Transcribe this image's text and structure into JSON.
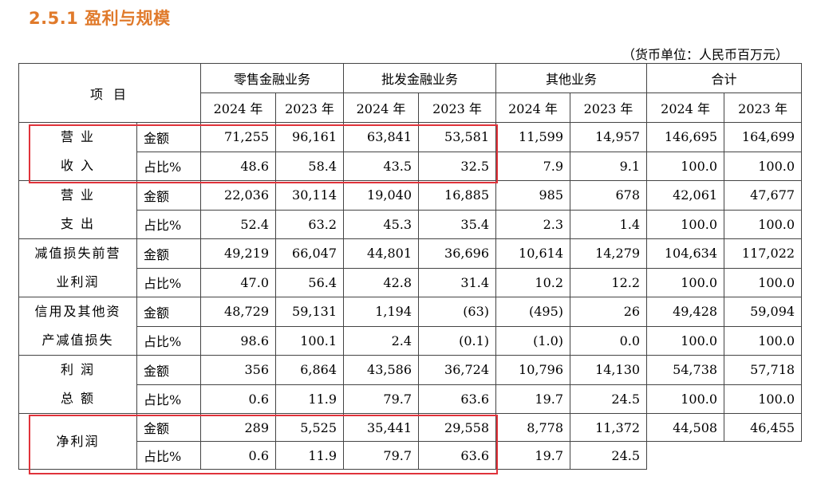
{
  "section": {
    "title": "2.5.1  盈利与规模"
  },
  "unit": "（货币单位：人民币百万元）",
  "header": {
    "item": "项  目",
    "groups": [
      "零售金融业务",
      "批发金融业务",
      "其他业务",
      "合计"
    ],
    "years": [
      "2024 年",
      "2023 年",
      "2024 年",
      "2023 年",
      "2024 年",
      "2023 年",
      "2024 年",
      "2023 年"
    ]
  },
  "rows": [
    {
      "label": [
        "营  业",
        "收  入"
      ],
      "amount": {
        "name": "金额",
        "values": [
          "71,255",
          "96,161",
          "63,841",
          "53,581",
          "11,599",
          "14,957",
          "146,695",
          "164,699"
        ]
      },
      "ratio": {
        "name": "占比%",
        "values": [
          "48.6",
          "58.4",
          "43.5",
          "32.5",
          "7.9",
          "9.1",
          "100.0",
          "100.0"
        ]
      }
    },
    {
      "label": [
        "营  业",
        "支  出"
      ],
      "amount": {
        "name": "金额",
        "values": [
          "22,036",
          "30,114",
          "19,040",
          "16,885",
          "985",
          "678",
          "42,061",
          "47,677"
        ]
      },
      "ratio": {
        "name": "占比%",
        "values": [
          "52.4",
          "63.2",
          "45.3",
          "35.4",
          "2.3",
          "1.4",
          "100.0",
          "100.0"
        ]
      }
    },
    {
      "label": [
        "减值损失前营",
        "业利润"
      ],
      "amount": {
        "name": "金额",
        "values": [
          "49,219",
          "66,047",
          "44,801",
          "36,696",
          "10,614",
          "14,279",
          "104,634",
          "117,022"
        ]
      },
      "ratio": {
        "name": "占比%",
        "values": [
          "47.0",
          "56.4",
          "42.8",
          "31.4",
          "10.2",
          "12.2",
          "100.0",
          "100.0"
        ]
      }
    },
    {
      "label": [
        "信用及其他资",
        "产减值损失"
      ],
      "amount": {
        "name": "金额",
        "values": [
          "48,729",
          "59,131",
          "1,194",
          "(63)",
          "(495)",
          "26",
          "49,428",
          "59,094"
        ]
      },
      "ratio": {
        "name": "占比%",
        "values": [
          "98.6",
          "100.1",
          "2.4",
          "(0.1)",
          "(1.0)",
          "0.0",
          "100.0",
          "100.0"
        ]
      }
    },
    {
      "label": [
        "利  润",
        "总  额"
      ],
      "amount": {
        "name": "金额",
        "values": [
          "356",
          "6,864",
          "43,586",
          "36,724",
          "10,796",
          "14,130",
          "54,738",
          "57,718"
        ]
      },
      "ratio": {
        "name": "占比%",
        "values": [
          "0.6",
          "11.9",
          "79.7",
          "63.6",
          "19.7",
          "24.5",
          "100.0",
          "100.0"
        ]
      }
    },
    {
      "label": [
        "净利润"
      ],
      "amount": {
        "name": "金额",
        "values": [
          "289",
          "5,525",
          "35,441",
          "29,558",
          "8,778",
          "11,372",
          "44,508",
          "46,455"
        ]
      },
      "ratio": {
        "name": "占比%",
        "values": [
          "0.6",
          "11.9",
          "79.7",
          "63.6",
          "19.7",
          "24.5",
          "",
          ""
        ]
      }
    }
  ],
  "highlight_color": "#e0333b",
  "title_color": "#e07a2b"
}
